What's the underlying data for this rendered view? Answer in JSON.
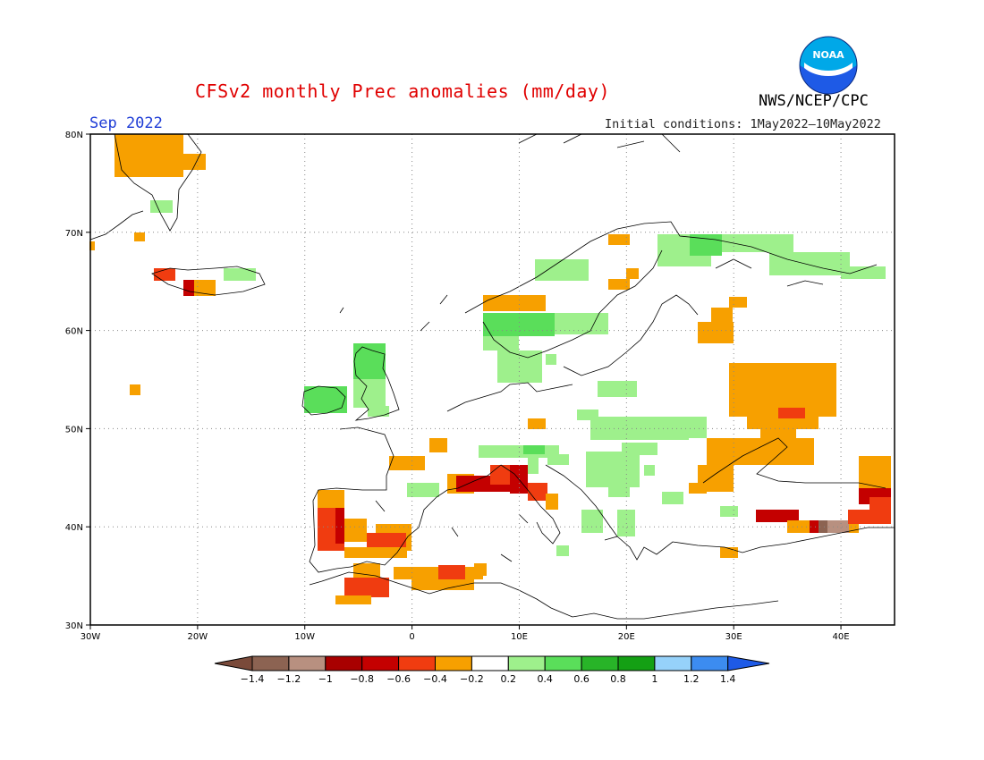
{
  "header": {
    "title": "CFSv2 monthly Prec anomalies (mm/day)",
    "org": "NWS/NCEP/CPC",
    "month": "Sep 2022",
    "initial_conditions": "Initial conditions: 1May2022—10May2022",
    "logo_text": "NOAA"
  },
  "axes": {
    "lat_labels": [
      "80N",
      "70N",
      "60N",
      "50N",
      "40N",
      "30N"
    ],
    "lon_labels": [
      "30W",
      "20W",
      "10W",
      "0",
      "10E",
      "20E",
      "30E",
      "40E"
    ],
    "lat_values": [
      80,
      70,
      60,
      50,
      40,
      30
    ],
    "lon_values": [
      -30,
      -20,
      -10,
      0,
      10,
      20,
      30,
      40
    ],
    "lon_range": [
      -30,
      45
    ],
    "lat_range": [
      30,
      80
    ]
  },
  "colorbar": {
    "labels": [
      "−1.4",
      "−1.2",
      "−1",
      "−0.8",
      "−0.6",
      "−0.4",
      "−0.2",
      "0.2",
      "0.4",
      "0.6",
      "0.8",
      "1",
      "1.2",
      "1.4"
    ],
    "colors": [
      "#7a4a3a",
      "#8c6352",
      "#b89080",
      "#a80000",
      "#c40000",
      "#f03c10",
      "#f7a000",
      "#ffffff",
      "#9ef08c",
      "#5ade5a",
      "#28b428",
      "#14a014",
      "#96d2fa",
      "#3c8cf0",
      "#1e5ae6"
    ]
  },
  "anomaly_colors": {
    "o": "#f7a000",
    "r": "#f03c10",
    "d": "#c40000",
    "b": "#b89080",
    "n": "#8c6352",
    "l": "#9ef08c",
    "g": "#5ade5a",
    "k": "#28b428"
  }
}
